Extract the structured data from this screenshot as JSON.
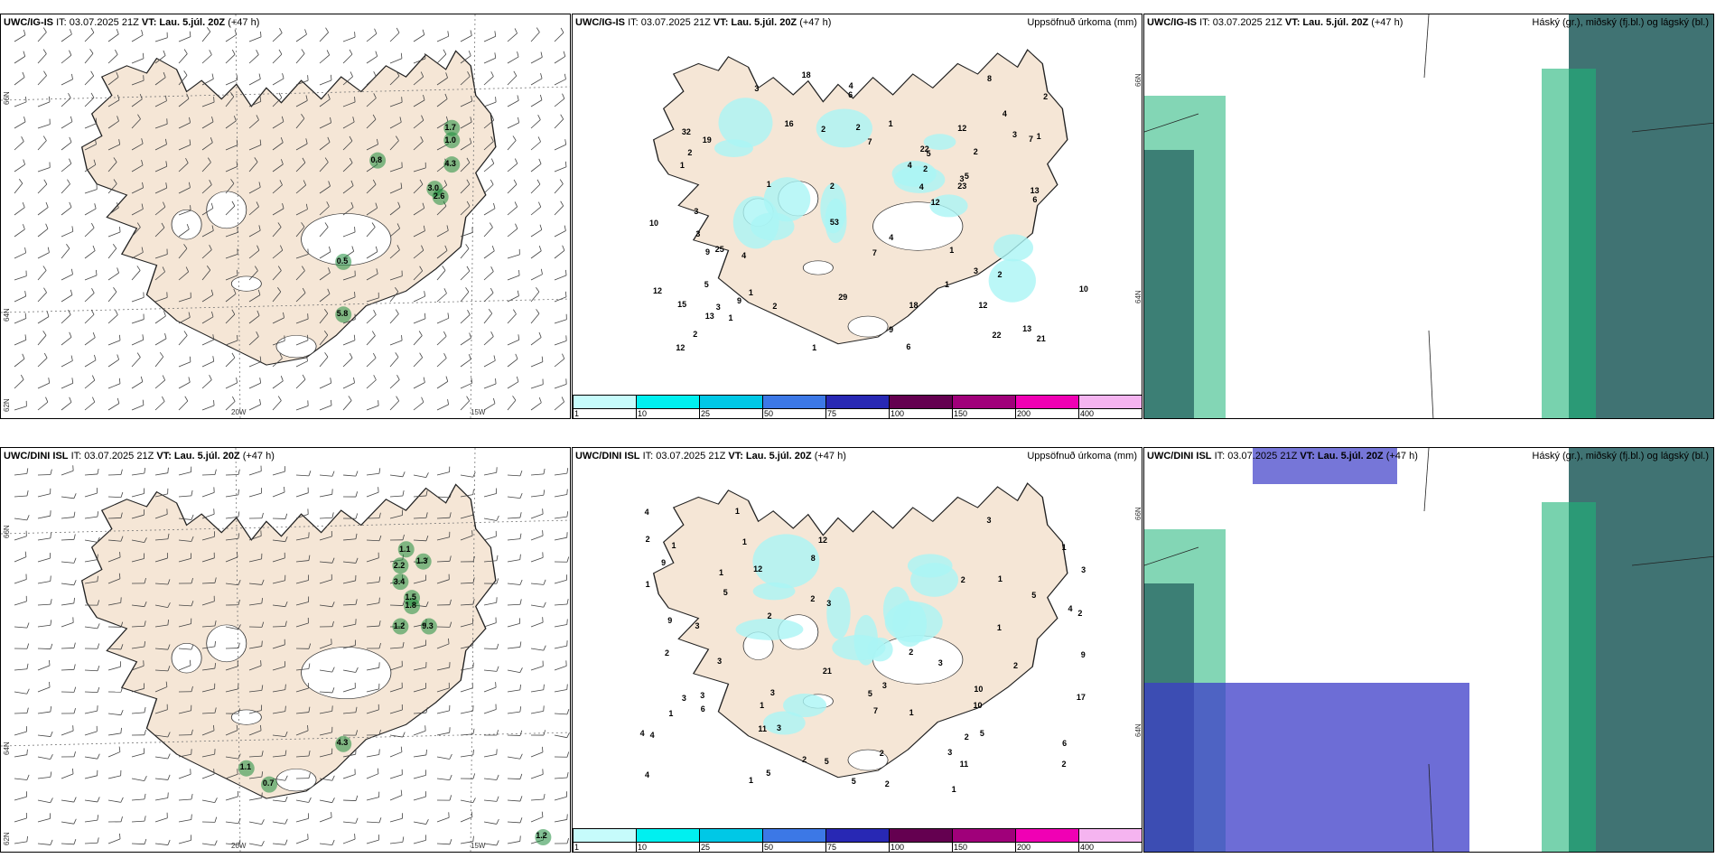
{
  "panels": [
    {
      "model": "UWC/IG-IS",
      "it": "IT: 03.07.2025 21Z",
      "vt": "VT: Lau. 5.júl. 20Z",
      "lead": "(+47 h)",
      "right": "",
      "labels": [
        "1.7",
        "1.0",
        "4.3",
        "0.8",
        "3.0",
        "2.6",
        "0.5",
        "5.8"
      ],
      "axes": {
        "x1": "20W",
        "x2": "15W",
        "y1": "66N",
        "y2": "64N",
        "y3": "62N"
      }
    },
    {
      "model": "UWC/IG-IS",
      "it": "IT: 03.07.2025 21Z",
      "vt": "VT: Lau. 5.júl. 20Z",
      "lead": "(+47 h)",
      "right": "Uppsöfnuð úrkoma (mm)",
      "labels": [
        "1",
        "1",
        "3",
        "12",
        "4",
        "1",
        "7",
        "10",
        "6",
        "2",
        "6",
        "9",
        "12",
        "2",
        "4",
        "7",
        "8",
        "9",
        "12",
        "10",
        "13",
        "5",
        "4",
        "3",
        "5",
        "2",
        "6",
        "12",
        "18",
        "15",
        "18",
        "22",
        "12",
        "16",
        "2",
        "22",
        "13",
        "4",
        "4",
        "2",
        "1",
        "19",
        "53",
        "5",
        "3",
        "1",
        "2",
        "1",
        "3",
        "7",
        "25",
        "29",
        "32",
        "23",
        "13",
        "21",
        "3",
        "3",
        "1",
        "2",
        "1",
        "4",
        "2",
        "3",
        "2",
        "9",
        "2",
        "1"
      ],
      "axes": {
        "y1": "66N",
        "y2": "64N"
      }
    },
    {
      "model": "UWC/IG-IS",
      "it": "IT: 03.07.2025 21Z",
      "vt": "VT: Lau. 5.júl. 20Z",
      "lead": "(+47 h)",
      "right": "Háský (gr.), miðský (fj.bl.) og lágský (bl.)"
    },
    {
      "model": "UWC/DINI ISL",
      "it": "IT: 03.07.2025 21Z",
      "vt": "VT: Lau. 5.júl. 20Z",
      "lead": "(+47 h)",
      "right": "",
      "labels": [
        "1.1",
        "2.2",
        "1.3",
        "3.4",
        "1.5",
        "1.8",
        "1.2",
        "9.3",
        "4.3",
        "1.1",
        "0.7",
        "1.2"
      ],
      "axes": {
        "x1": "20W",
        "x2": "15W",
        "y1": "66N",
        "y2": "64N",
        "y3": "62N"
      }
    },
    {
      "model": "UWC/DINI ISL",
      "it": "IT: 03.07.2025 21Z",
      "vt": "VT: Lau. 5.júl. 20Z",
      "lead": "(+47 h)",
      "right": "Uppsöfnuð úrkoma (mm)",
      "labels": [
        "1",
        "5",
        "4",
        "3",
        "1",
        "2",
        "1",
        "3",
        "1",
        "1",
        "2",
        "3",
        "10",
        "1",
        "9",
        "4",
        "6",
        "5",
        "4",
        "2",
        "1",
        "3",
        "2",
        "9",
        "3",
        "11",
        "11",
        "17",
        "4",
        "6",
        "12",
        "21",
        "9",
        "12",
        "5",
        "3",
        "5",
        "3",
        "2",
        "1",
        "8",
        "2",
        "5",
        "4",
        "3",
        "3",
        "2",
        "1",
        "2",
        "1",
        "2",
        "5",
        "3",
        "2",
        "3",
        "1",
        "5",
        "10",
        "1",
        "2",
        "7",
        "2",
        "2",
        "1",
        "3"
      ],
      "axes": {
        "y1": "66N",
        "y2": "64N"
      }
    },
    {
      "model": "UWC/DINI ISL",
      "it": "IT: 03.07.2025 21Z",
      "vt": "VT: Lau. 5.júl. 20Z",
      "lead": "(+47 h)",
      "right": "Háský (gr.), miðský (fj.bl.) og lágský (bl.)"
    }
  ],
  "colorbar": {
    "ticks": [
      "1",
      "10",
      "25",
      "50",
      "75",
      "100",
      "150",
      "200",
      "400"
    ],
    "colors": [
      "#c6fbfb",
      "#00f0f0",
      "#00c8e6",
      "#3c78e6",
      "#2828b4",
      "#640050",
      "#a0007a",
      "#f000b4",
      "#f5b4f0"
    ]
  },
  "colors": {
    "land": "#f5e6d6",
    "coast": "#222222",
    "ice": "#ffffff",
    "precip": "#aaf5f5",
    "cloud_high": "#1eb478",
    "cloud_mid": "#1e5a5a",
    "cloud_low": "#3c3cc8"
  }
}
